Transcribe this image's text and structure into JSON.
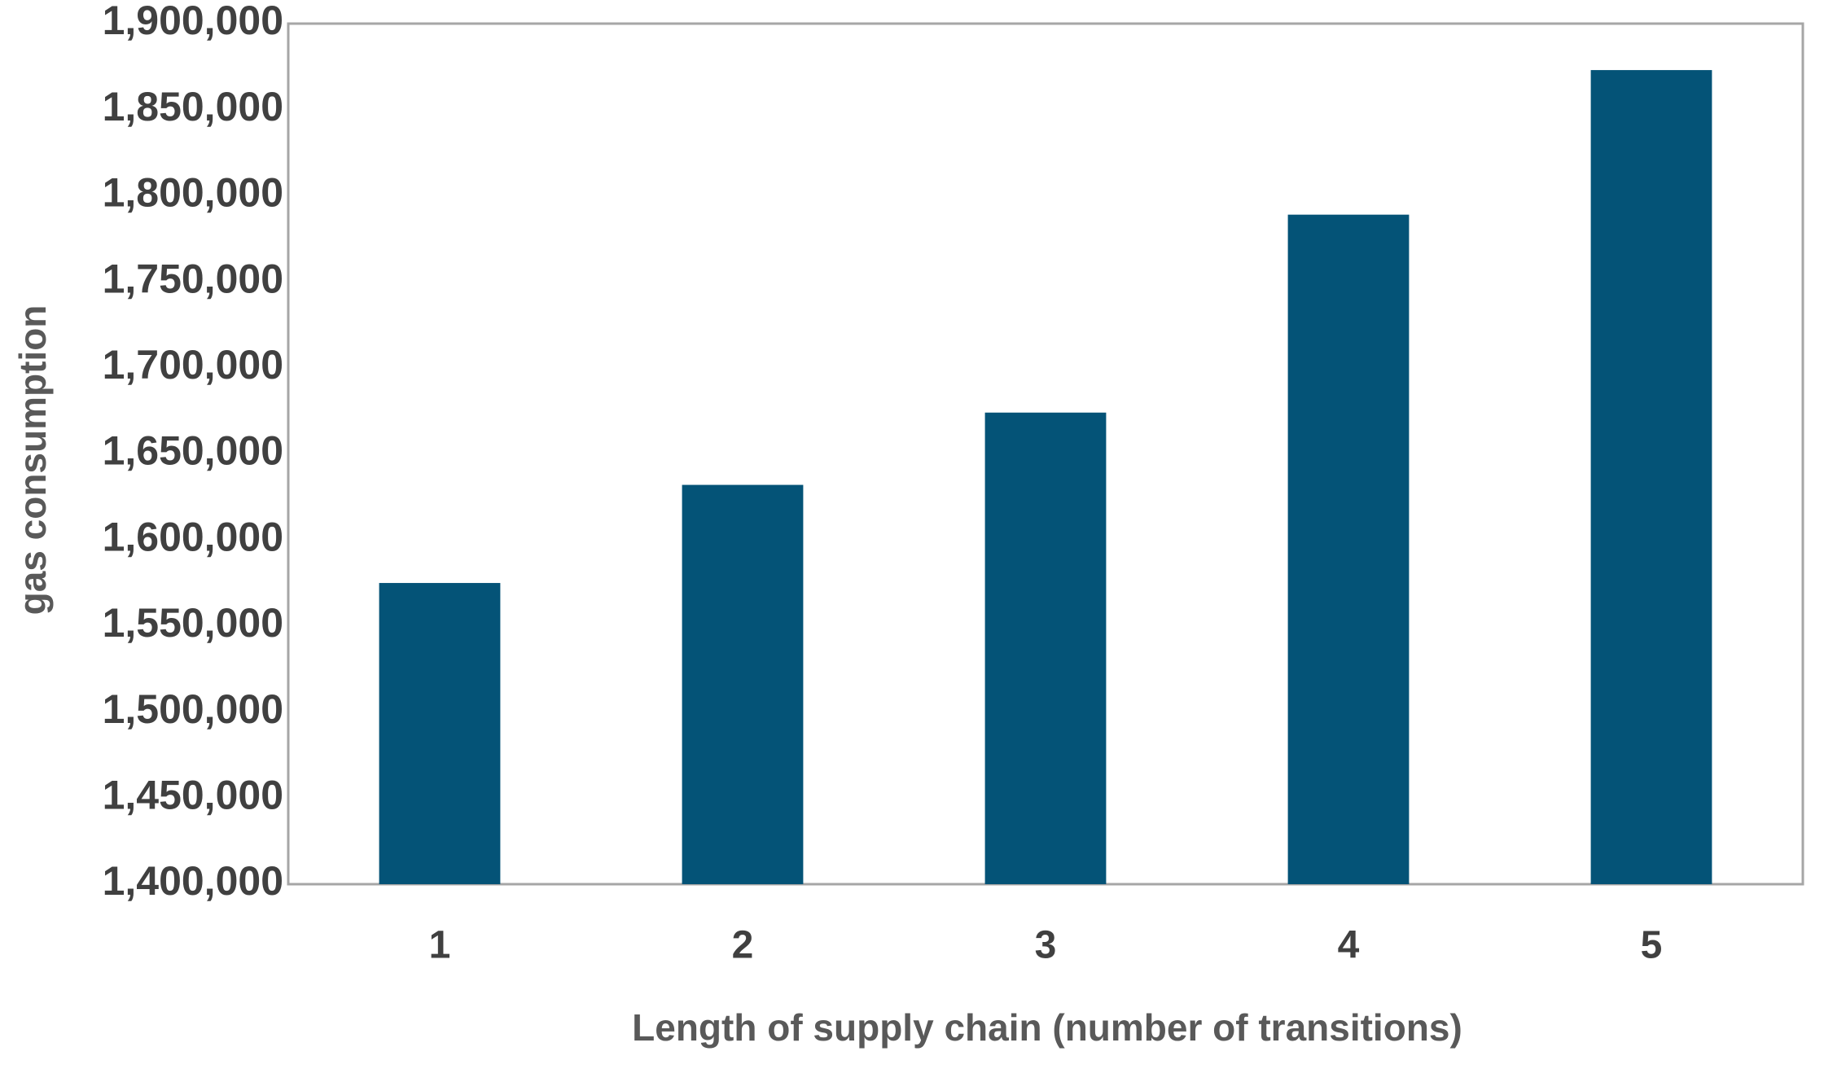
{
  "chart_data": {
    "type": "bar",
    "x_label": "Length of supply chain (number of transitions)",
    "y_label": "gas consumption",
    "categories": [
      "1",
      "2",
      "3",
      "4",
      "5"
    ],
    "values": [
      1575000,
      1632000,
      1674000,
      1789000,
      1873000
    ],
    "color": "#045377",
    "ylim": [
      1400000,
      1900000
    ],
    "yticks": [
      {
        "value": 1400000,
        "label": "1,400,000"
      },
      {
        "value": 1450000,
        "label": "1,450,000"
      },
      {
        "value": 1500000,
        "label": "1,500,000"
      },
      {
        "value": 1550000,
        "label": "1,550,000"
      },
      {
        "value": 1600000,
        "label": "1,600,000"
      },
      {
        "value": 1650000,
        "label": "1,650,000"
      },
      {
        "value": 1700000,
        "label": "1,700,000"
      },
      {
        "value": 1750000,
        "label": "1,750,000"
      },
      {
        "value": 1800000,
        "label": "1,800,000"
      },
      {
        "value": 1850000,
        "label": "1,850,000"
      },
      {
        "value": 1900000,
        "label": "1,900,000"
      }
    ],
    "grid": false
  }
}
